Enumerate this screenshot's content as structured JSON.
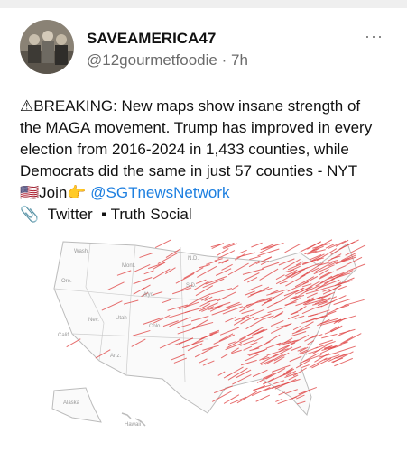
{
  "header": {
    "name": "SAVEAMERICA47",
    "handle": "@12gourmetfoodie",
    "separator": "·",
    "time": "7h",
    "menu": "···"
  },
  "post": {
    "lines": [
      "⚠BREAKING: New maps show insane strength of",
      "the MAGA movement. Trump has improved in every",
      "election from 2016-2024 in 1,433 counties, while",
      "Democrats did the same in just 57 counties - NYT"
    ],
    "join": "🇺🇸Join👉",
    "link": "@SGTnewsNetwork",
    "attachment_icon": "📎",
    "sources": "Twitter  ▪ Truth Social"
  },
  "map": {
    "labels": [
      "Wash.",
      "Ore.",
      "Calif.",
      "Nev.",
      "Utah",
      "Ariz.",
      "Mont.",
      "Wyo.",
      "Colo.",
      "N.D.",
      "S.D.",
      "Alaska",
      "Hawaii"
    ]
  }
}
